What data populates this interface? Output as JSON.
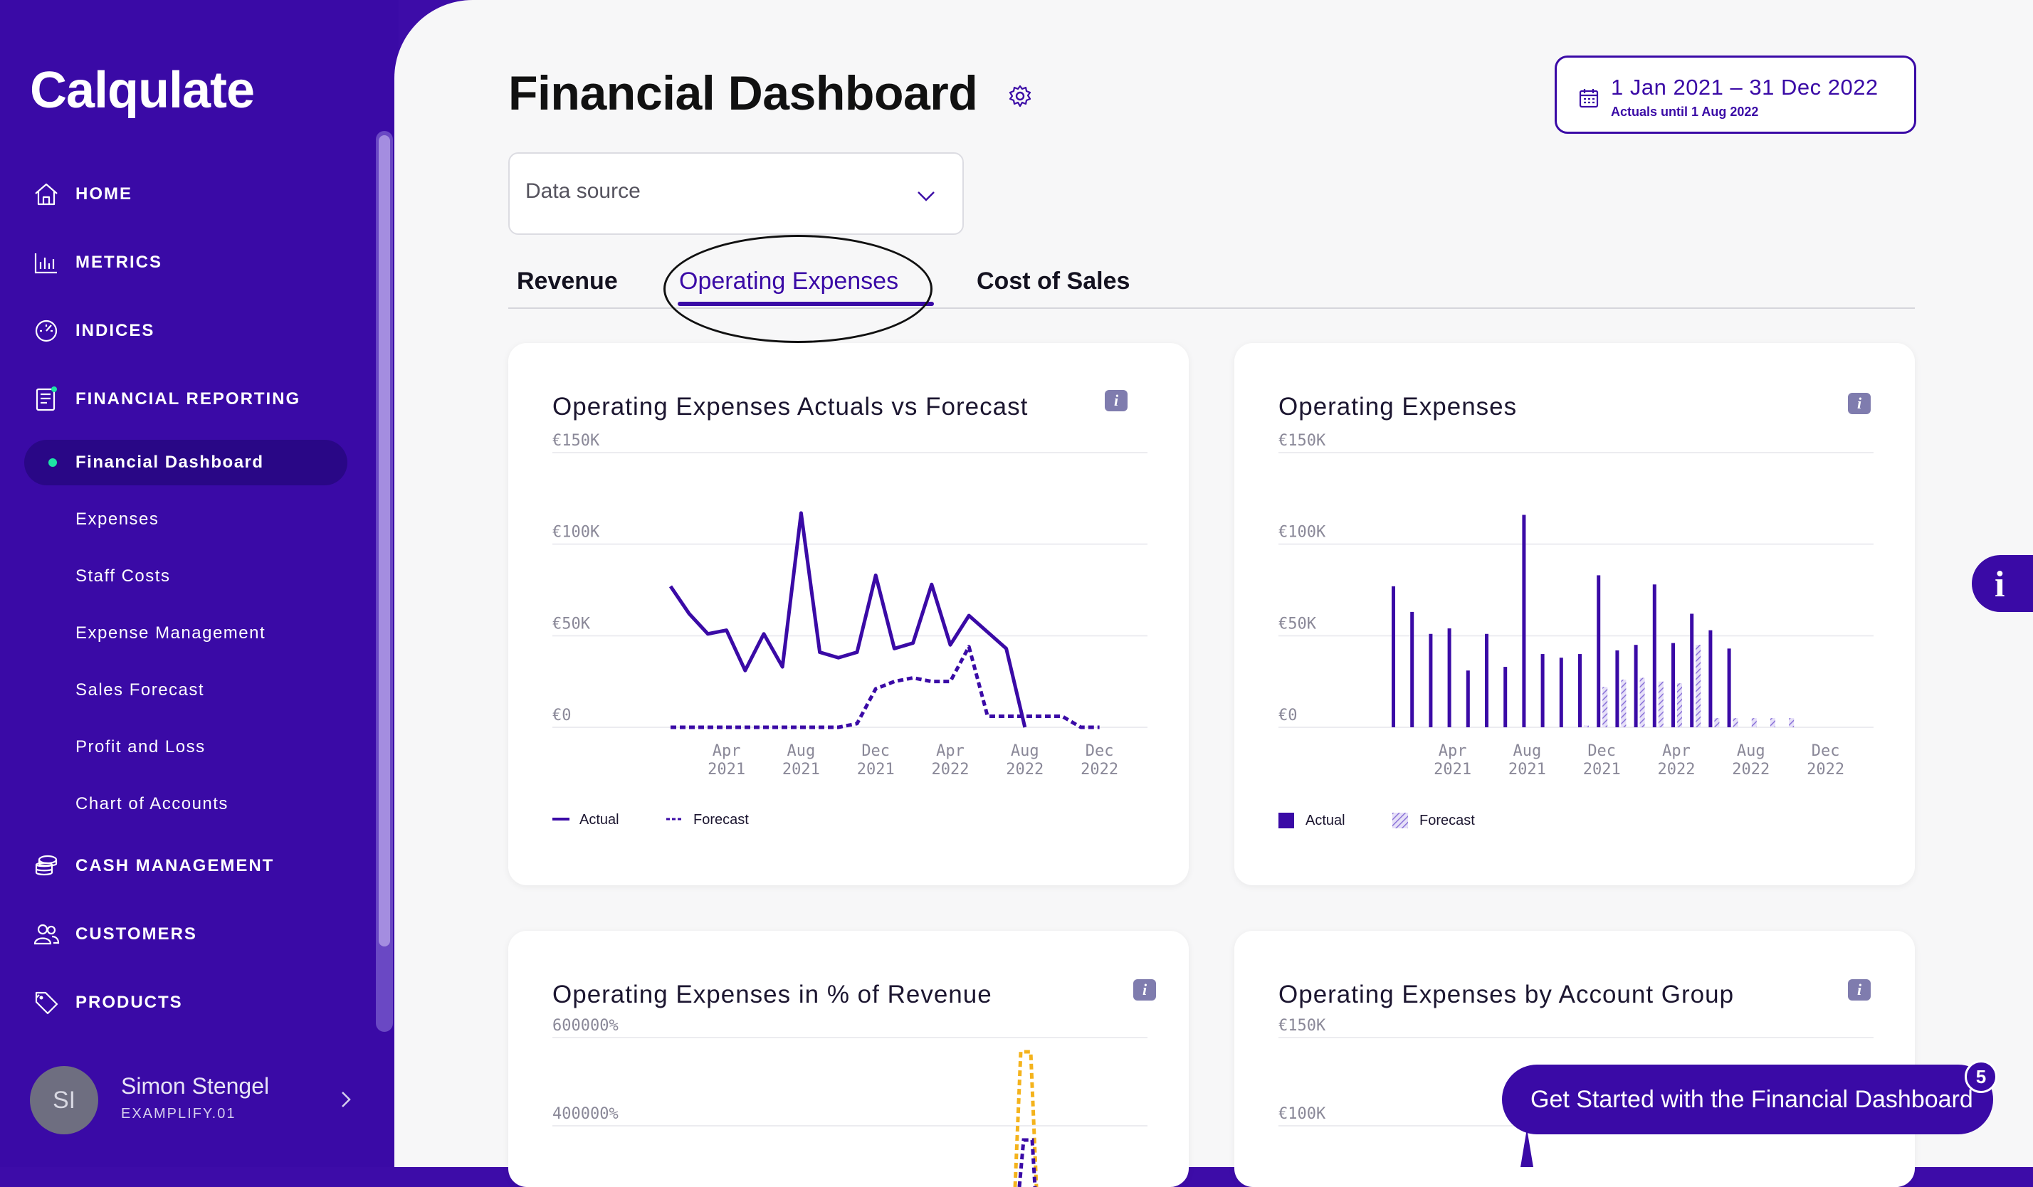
{
  "sidebar": {
    "logo": "Calqulate",
    "main_items": [
      {
        "label": "HOME",
        "icon": "home-icon"
      },
      {
        "label": "METRICS",
        "icon": "bar-chart-icon"
      },
      {
        "label": "INDICES",
        "icon": "gauge-icon"
      },
      {
        "label": "FINANCIAL REPORTING",
        "icon": "report-icon"
      },
      {
        "label": "CASH MANAGEMENT",
        "icon": "coins-icon"
      },
      {
        "label": "CUSTOMERS",
        "icon": "users-icon"
      },
      {
        "label": "PRODUCTS",
        "icon": "tag-icon"
      }
    ],
    "sub_items": [
      {
        "label": "Financial Dashboard",
        "active": true
      },
      {
        "label": "Expenses"
      },
      {
        "label": "Staff Costs"
      },
      {
        "label": "Expense Management"
      },
      {
        "label": "Sales Forecast"
      },
      {
        "label": "Profit and Loss"
      },
      {
        "label": "Chart of Accounts"
      }
    ],
    "user": {
      "initials": "SI",
      "name": "Simon Stengel",
      "org": "EXAMPLIFY.01"
    }
  },
  "header": {
    "title": "Financial Dashboard",
    "date_range": "1 Jan 2021 – 31 Dec 2022",
    "date_sub": "Actuals until 1 Aug 2022"
  },
  "data_source": {
    "placeholder": "Data source"
  },
  "tabs": [
    {
      "label": "Revenue"
    },
    {
      "label": "Operating Expenses",
      "active": true
    },
    {
      "label": "Cost of Sales"
    }
  ],
  "colors": {
    "brand": "#3a0aa6",
    "accent_green": "#1ee4a4",
    "forecast_yellow": "#f4b31c"
  },
  "cards": {
    "card1": {
      "title": "Operating Expenses Actuals vs Forecast"
    },
    "card2": {
      "title": "Operating Expenses"
    },
    "card3": {
      "title": "Operating Expenses in % of Revenue"
    },
    "card4": {
      "title": "Operating Expenses by Account Group"
    }
  },
  "chart_data": [
    {
      "type": "line",
      "title": "Operating Expenses Actuals vs Forecast",
      "yticks": [
        "€150K",
        "€100K",
        "€50K",
        "€0"
      ],
      "ylim": [
        0,
        150000
      ],
      "xticks": [
        [
          "Apr",
          "2021"
        ],
        [
          "Aug",
          "2021"
        ],
        [
          "Dec",
          "2021"
        ],
        [
          "Apr",
          "2022"
        ],
        [
          "Aug",
          "2022"
        ],
        [
          "Dec",
          "2022"
        ]
      ],
      "x_months": [
        "Jan 2021",
        "Feb 2021",
        "Mar 2021",
        "Apr 2021",
        "May 2021",
        "Jun 2021",
        "Jul 2021",
        "Aug 2021",
        "Sep 2021",
        "Oct 2021",
        "Nov 2021",
        "Dec 2021",
        "Jan 2022",
        "Feb 2022",
        "Mar 2022",
        "Apr 2022",
        "May 2022",
        "Jun 2022",
        "Jul 2022",
        "Aug 2022",
        "Sep 2022",
        "Oct 2022",
        "Nov 2022",
        "Dec 2022"
      ],
      "series": [
        {
          "name": "Actual",
          "style": "solid",
          "values": [
            77000,
            62000,
            51000,
            53000,
            31000,
            51000,
            33000,
            117000,
            41000,
            38000,
            41000,
            83000,
            43000,
            46000,
            78000,
            45000,
            61000,
            52000,
            43000,
            0,
            null,
            null,
            null,
            null
          ]
        },
        {
          "name": "Forecast",
          "style": "dashed",
          "values": [
            0,
            0,
            0,
            0,
            0,
            0,
            0,
            0,
            0,
            0,
            2000,
            21000,
            25000,
            27000,
            25000,
            25000,
            44000,
            6000,
            6000,
            6000,
            6000,
            6000,
            0,
            0
          ]
        }
      ],
      "legend": [
        "Actual",
        "Forecast"
      ]
    },
    {
      "type": "bar",
      "title": "Operating Expenses",
      "yticks": [
        "€150K",
        "€100K",
        "€50K",
        "€0"
      ],
      "ylim": [
        0,
        150000
      ],
      "xticks": [
        [
          "Apr",
          "2021"
        ],
        [
          "Aug",
          "2021"
        ],
        [
          "Dec",
          "2021"
        ],
        [
          "Apr",
          "2022"
        ],
        [
          "Aug",
          "2022"
        ],
        [
          "Dec",
          "2022"
        ]
      ],
      "series": [
        {
          "name": "Actual",
          "values": [
            77000,
            63000,
            51000,
            54000,
            31000,
            51000,
            33000,
            116000,
            40000,
            38000,
            40000,
            83000,
            42000,
            45000,
            78000,
            46000,
            62000,
            53000,
            43000,
            0,
            0,
            0,
            0,
            0
          ]
        },
        {
          "name": "Forecast",
          "values": [
            0,
            0,
            0,
            0,
            0,
            0,
            0,
            0,
            0,
            0,
            1000,
            22000,
            26000,
            27000,
            25000,
            24000,
            45000,
            5000,
            5000,
            5000,
            5000,
            5000,
            0,
            0
          ]
        }
      ],
      "legend": [
        "Actual",
        "Forecast"
      ]
    },
    {
      "type": "line",
      "title": "Operating Expenses in % of Revenue",
      "yticks": [
        "600000%",
        "400000%"
      ],
      "series_note": "partially visible"
    },
    {
      "type": "bar",
      "title": "Operating Expenses by Account Group",
      "yticks": [
        "€150K",
        "€100K"
      ],
      "series_note": "partially visible"
    }
  ],
  "side_info": {
    "glyph": "i"
  },
  "get_started": {
    "label": "Get Started with the Financial Dashboard",
    "badge": "5"
  },
  "info_glyph": "i"
}
